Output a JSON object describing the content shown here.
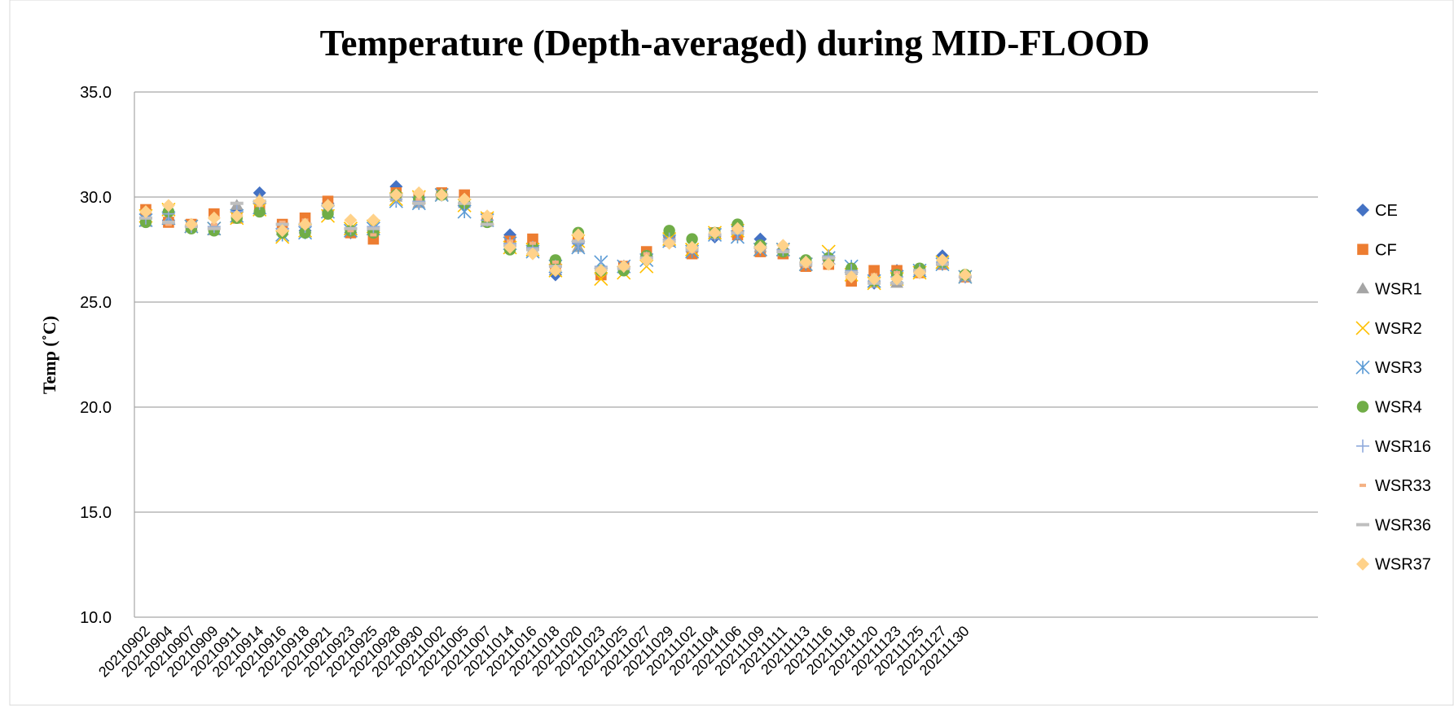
{
  "chart_data": {
    "type": "scatter",
    "title": "Temperature (Depth-averaged) during MID-FLOOD",
    "y_label": "Temp (˚C)",
    "categories": [
      "20210902",
      "20210904",
      "20210907",
      "20210909",
      "20210911",
      "20210914",
      "20210916",
      "20210918",
      "20210921",
      "20210923",
      "20210925",
      "20210928",
      "20210930",
      "20211002",
      "20211005",
      "20211007",
      "20211014",
      "20211016",
      "20211018",
      "20211020",
      "20211023",
      "20211025",
      "20211027",
      "20211029",
      "20211102",
      "20211104",
      "20211106",
      "20211109",
      "20211111",
      "20211113",
      "20211116",
      "20211118",
      "20211120",
      "20211123",
      "20211125",
      "20211127",
      "20211130",
      null,
      null,
      null,
      null,
      null,
      null,
      null,
      null,
      null,
      null,
      null,
      null,
      null,
      null,
      null
    ],
    "ylim": [
      10,
      35
    ],
    "yticks": [
      {
        "value": 10,
        "label": "10.0"
      },
      {
        "value": 15,
        "label": "15.0"
      },
      {
        "value": 20,
        "label": "20.0"
      },
      {
        "value": 25,
        "label": "25.0"
      },
      {
        "value": 30,
        "label": "30.0"
      },
      {
        "value": 35,
        "label": "35.0"
      }
    ],
    "grid": true,
    "legend": "right",
    "series": [
      {
        "name": "CE",
        "color": "#4472c4",
        "marker": "diamond",
        "values": [
          29.0,
          28.9,
          28.6,
          28.5,
          29.4,
          30.2,
          28.5,
          28.4,
          29.7,
          28.3,
          28.4,
          30.5,
          29.8,
          30.1,
          29.6,
          28.9,
          28.2,
          27.5,
          26.3,
          27.8,
          26.5,
          26.6,
          27.2,
          28.1,
          27.4,
          28.1,
          28.6,
          28.0,
          27.5,
          26.9,
          27.0,
          26.5,
          25.9,
          26.5,
          26.4,
          27.2,
          26.2,
          null,
          null,
          null,
          null,
          null,
          null,
          null,
          null,
          null,
          null,
          null,
          null,
          null,
          null,
          null
        ]
      },
      {
        "name": "CF",
        "color": "#ed7d31",
        "marker": "square",
        "values": [
          29.4,
          28.8,
          28.7,
          29.2,
          29.0,
          29.6,
          28.7,
          29.0,
          29.8,
          28.3,
          28.0,
          30.2,
          29.9,
          30.2,
          30.1,
          29.0,
          27.9,
          28.0,
          26.8,
          28.1,
          26.3,
          26.7,
          27.4,
          27.9,
          27.3,
          28.3,
          28.2,
          27.4,
          27.3,
          26.7,
          26.8,
          26.0,
          26.5,
          26.5,
          26.4,
          26.8,
          26.2,
          null,
          null,
          null,
          null,
          null,
          null,
          null,
          null,
          null,
          null,
          null,
          null,
          null,
          null,
          null
        ]
      },
      {
        "name": "WSR1",
        "color": "#a5a5a5",
        "marker": "triangle",
        "values": [
          28.8,
          28.9,
          28.6,
          28.4,
          29.6,
          29.9,
          28.4,
          28.5,
          29.5,
          28.4,
          28.6,
          30.0,
          29.7,
          30.1,
          29.7,
          28.8,
          27.7,
          27.5,
          26.6,
          27.6,
          26.5,
          26.6,
          27.2,
          28.0,
          27.6,
          28.2,
          28.4,
          27.6,
          27.4,
          26.9,
          27.2,
          26.5,
          25.9,
          25.9,
          26.5,
          26.8,
          26.2,
          null,
          null,
          null,
          null,
          null,
          null,
          null,
          null,
          null,
          null,
          null,
          null,
          null,
          null,
          null
        ]
      },
      {
        "name": "WSR2",
        "color": "#ffc000",
        "marker": "x",
        "values": [
          29.1,
          29.4,
          28.6,
          28.5,
          29.0,
          29.4,
          28.1,
          28.4,
          29.1,
          28.5,
          28.6,
          29.9,
          30.0,
          30.1,
          29.6,
          29.0,
          27.6,
          27.5,
          26.5,
          27.9,
          26.1,
          26.4,
          26.7,
          28.0,
          27.5,
          28.3,
          28.4,
          27.5,
          27.5,
          26.8,
          27.4,
          26.3,
          25.9,
          26.1,
          26.4,
          26.9,
          26.2,
          null,
          null,
          null,
          null,
          null,
          null,
          null,
          null,
          null,
          null,
          null,
          null,
          null,
          null,
          null
        ]
      },
      {
        "name": "WSR3",
        "color": "#5b9bd5",
        "marker": "star",
        "values": [
          28.9,
          29.0,
          28.6,
          28.5,
          29.1,
          29.5,
          28.2,
          28.3,
          29.3,
          28.4,
          28.5,
          29.8,
          29.7,
          30.1,
          29.3,
          28.9,
          27.8,
          27.4,
          26.7,
          27.6,
          26.9,
          26.7,
          27.0,
          27.9,
          27.4,
          28.2,
          28.1,
          27.5,
          27.5,
          26.8,
          27.1,
          26.7,
          26.0,
          26.2,
          26.5,
          26.8,
          26.2,
          null,
          null,
          null,
          null,
          null,
          null,
          null,
          null,
          null,
          null,
          null,
          null,
          null,
          null,
          null
        ]
      },
      {
        "name": "WSR4",
        "color": "#70ad47",
        "marker": "circle",
        "values": [
          28.8,
          29.3,
          28.5,
          28.4,
          29.0,
          29.3,
          28.3,
          28.3,
          29.2,
          28.4,
          28.3,
          30.1,
          29.9,
          30.1,
          29.7,
          28.8,
          27.5,
          27.6,
          27.0,
          28.3,
          26.5,
          26.5,
          27.2,
          28.4,
          28.0,
          28.3,
          28.7,
          27.7,
          27.4,
          27.0,
          27.1,
          26.6,
          26.0,
          26.3,
          26.6,
          26.9,
          26.3,
          null,
          null,
          null,
          null,
          null,
          null,
          null,
          null,
          null,
          null,
          null,
          null,
          null,
          null,
          null
        ]
      },
      {
        "name": "WSR16",
        "color": "#8faadc",
        "marker": "plus",
        "values": [
          29.0,
          29.2,
          28.6,
          28.6,
          29.3,
          29.7,
          28.5,
          28.6,
          29.6,
          28.5,
          28.6,
          29.9,
          29.8,
          30.1,
          29.7,
          28.9,
          27.8,
          27.6,
          26.7,
          27.8,
          26.7,
          26.7,
          27.1,
          28.0,
          27.6,
          28.2,
          28.3,
          27.6,
          27.5,
          26.9,
          27.2,
          26.5,
          26.0,
          26.2,
          26.5,
          26.9,
          26.2,
          null,
          null,
          null,
          null,
          null,
          null,
          null,
          null,
          null,
          null,
          null,
          null,
          null,
          null,
          null
        ]
      },
      {
        "name": "WSR33",
        "color": "#f4b183",
        "marker": "dash",
        "values": [
          29.2,
          28.7,
          28.8,
          28.7,
          29.2,
          29.6,
          28.8,
          28.9,
          29.7,
          28.4,
          28.2,
          30.0,
          29.9,
          30.2,
          29.9,
          28.9,
          27.9,
          27.8,
          26.9,
          28.0,
          26.5,
          26.7,
          27.3,
          27.9,
          27.4,
          28.3,
          28.3,
          27.5,
          27.4,
          26.7,
          26.9,
          26.1,
          26.3,
          26.4,
          26.4,
          26.9,
          26.2,
          null,
          null,
          null,
          null,
          null,
          null,
          null,
          null,
          null,
          null,
          null,
          null,
          null,
          null,
          null
        ]
      },
      {
        "name": "WSR36",
        "color": "#bfbfbf",
        "marker": "longdash",
        "values": [
          29.0,
          28.8,
          28.6,
          28.5,
          29.7,
          29.8,
          28.7,
          28.7,
          29.6,
          28.5,
          28.5,
          30.1,
          29.7,
          30.1,
          29.7,
          28.7,
          27.7,
          27.5,
          26.7,
          27.9,
          26.6,
          26.6,
          27.1,
          27.9,
          27.5,
          28.2,
          28.3,
          27.6,
          27.4,
          26.8,
          27.1,
          26.4,
          25.9,
          25.9,
          26.5,
          26.8,
          26.2,
          null,
          null,
          null,
          null,
          null,
          null,
          null,
          null,
          null,
          null,
          null,
          null,
          null,
          null,
          null
        ]
      },
      {
        "name": "WSR37",
        "color": "#ffd28a",
        "marker": "diamond",
        "values": [
          29.3,
          29.6,
          28.7,
          29.0,
          29.1,
          29.8,
          28.4,
          28.7,
          29.6,
          28.9,
          28.9,
          30.1,
          30.2,
          30.1,
          29.9,
          29.1,
          27.6,
          27.3,
          26.5,
          28.2,
          26.5,
          26.7,
          27.0,
          27.8,
          27.6,
          28.3,
          28.5,
          27.6,
          27.7,
          26.9,
          26.8,
          26.2,
          26.1,
          26.1,
          26.4,
          27.0,
          26.3,
          null,
          null,
          null,
          null,
          null,
          null,
          null,
          null,
          null,
          null,
          null,
          null,
          null,
          null,
          null
        ]
      }
    ]
  }
}
